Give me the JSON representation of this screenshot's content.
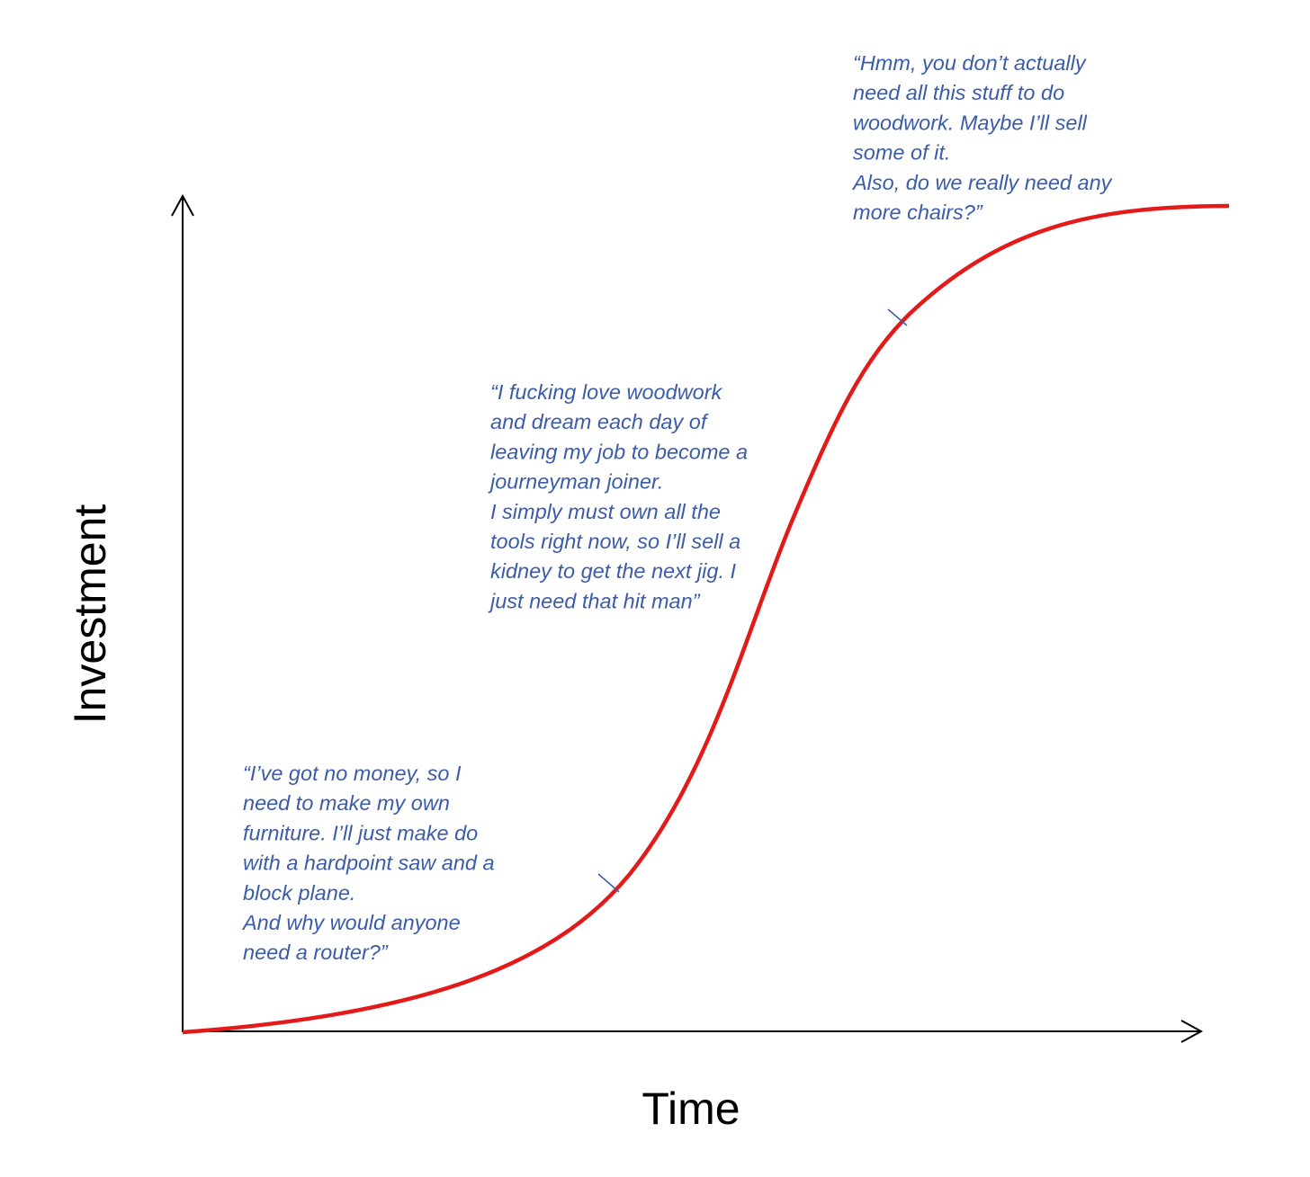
{
  "axes": {
    "y_label": "Investment",
    "x_label": "Time"
  },
  "annotations": [
    {
      "lines": [
        "“Hmm, you don’t actually",
        "need all this stuff to do",
        "woodwork. Maybe I’ll sell",
        "some of it.",
        "Also, do we really need any",
        "more chairs?”"
      ]
    },
    {
      "lines": [
        "“I fucking love woodwork",
        "and dream each day of",
        "leaving my job to become a",
        "journeyman joiner.",
        "I simply must own all the",
        "tools right now, so I’ll sell a",
        "kidney to get the next jig. I",
        "just need that hit man”"
      ]
    },
    {
      "lines": [
        "“I’ve got no money, so I",
        "need to make my own",
        "furniture. I’ll just make do",
        "with a hardpoint saw and a",
        "block plane.",
        "And why would anyone",
        "need a router?”"
      ]
    }
  ]
}
